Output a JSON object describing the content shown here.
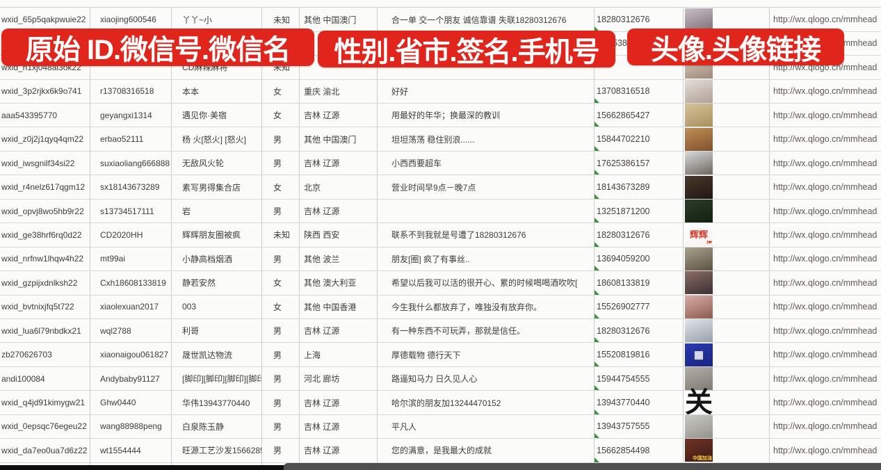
{
  "banners": {
    "left": "原始 ID.微信号.微信名",
    "middle": "性别.省市.签名.手机号",
    "right": "头像.头像链接"
  },
  "colors": {
    "banner_red": "#e0251c",
    "grid_line": "#c9cdd0",
    "cell_text": "#3e3c36",
    "link_text": "#5f5952",
    "error_indicator_green": "#3d9140",
    "scrollbar_track": "#0e0e0e",
    "scrollbar_thumb": "#4f4f4f"
  },
  "icons": {
    "error_indicator": "green-corner-triangle",
    "avatar_placeholder": "photo-thumbnail"
  },
  "rows": [
    {
      "id": "wxid_65p5qakpwuie22",
      "alias": "xiaojing600546",
      "name": "丫丫~小",
      "gender": "未知",
      "region": "其他 中国澳门",
      "signature": "合一单 交一个朋友 诚信靠谱 失联18280312676",
      "phone": "18280312676",
      "link": "http://wx.qlogo.cn/mmhead",
      "mark": "b",
      "avatar": {
        "bg1": "#c7bfc4",
        "bg2": "#7e6f7a"
      }
    },
    {
      "id": "",
      "alias": "",
      "name": "",
      "gender": "",
      "region": "",
      "signature": "",
      "phone": "5386",
      "indent": true,
      "link": "http://wx.qlogo.cn/mmhead",
      "mark": "",
      "avatar": {
        "bg1": "#cccccc",
        "bg2": "#aaaaaa"
      }
    },
    {
      "id": "wxid_h1xj048al3ok22",
      "alias": "",
      "name": "CD麻辣麻将",
      "gender": "未知",
      "region": "",
      "signature": "",
      "phone": "",
      "link": "http://wx.qlogo.cn/mmhead",
      "mark": "t",
      "avatar": {
        "bg1": "#d9c9bf",
        "bg2": "#a08878"
      }
    },
    {
      "id": "wxid_3p2rjkx6k9o741",
      "alias": "r13708316518",
      "name": "本本",
      "gender": "女",
      "region": "重庆 渝北",
      "signature": "好好",
      "phone": "13708316518",
      "link": "http://wx.qlogo.cn/mmhead",
      "mark": "b",
      "avatar": {
        "bg1": "#e3ddd8",
        "bg2": "#b0a198"
      }
    },
    {
      "id": "aaa543395770",
      "alias": "geyangxi1314",
      "name": "遇见你·美宿",
      "gender": "女",
      "region": "吉林 辽源",
      "signature": "用最好的年华；换最深的教训",
      "phone": "15662865427",
      "link": "http://wx.qlogo.cn/mmhead",
      "mark": "b",
      "avatar": {
        "bg1": "#d6c49a",
        "bg2": "#a98e5f"
      }
    },
    {
      "id": "wxid_z0j2j1qyq4qm22",
      "alias": "erbao52111",
      "name": "杨 火[怒火] [怒火]",
      "gender": "男",
      "region": "其他 中国澳门",
      "signature": "坦坦荡荡 稳住别浪......",
      "phone": "15844702210",
      "link": "http://wx.qlogo.cn/mmhead",
      "mark": "b",
      "avatar": {
        "bg1": "#bf8f57",
        "bg2": "#80502c"
      }
    },
    {
      "id": "wxid_iwsgnilf34si22",
      "alias": "suxiaoliang666888",
      "name": "无敌风火轮",
      "gender": "男",
      "region": "吉林 辽源",
      "signature": "小西西要超车",
      "phone": "17625386157",
      "link": "http://wx.qlogo.cn/mmhead",
      "mark": "b",
      "avatar": {
        "bg1": "#d6d9dc",
        "bg2": "#6f675e"
      }
    },
    {
      "id": "wxid_r4nelz617qgm12",
      "alias": "sx18143673289",
      "name": "素写男得集合店",
      "gender": "女",
      "region": "北京",
      "signature": "营业时间早9点－晚7点",
      "phone": "18143673289",
      "link": "http://wx.qlogo.cn/mmhead",
      "mark": "b",
      "avatar": {
        "bg1": "#4a382c",
        "bg2": "#201712"
      }
    },
    {
      "id": "wxid_opvj8wo5hb9r22",
      "alias": "s13734517111",
      "name": "岩",
      "gender": "男",
      "region": "吉林 辽源",
      "signature": "",
      "phone": "13251871200",
      "link": "http://wx.qlogo.cn/mmhead",
      "mark": "b",
      "avatar": {
        "bg1": "#2c3c2c",
        "bg2": "#14200f"
      }
    },
    {
      "id": "wxid_ge38hrf6rq0d22",
      "alias": "CD2020HH",
      "name": "辉辉朋友圈被疯",
      "gender": "未知",
      "region": "陕西 西安",
      "signature": "联系不到我就是号遭了18280312676",
      "phone": "18280312676",
      "link": "http://wx.qlogo.cn/mmhead",
      "mark": "b",
      "avatar": {
        "bg1": "#ffffff",
        "bg2": "#f4f2ef",
        "label": "辉辉",
        "label_color": "#d43a2a",
        "label_size": 13,
        "sub": "I❤",
        "sub_color": "#d43a2a"
      }
    },
    {
      "id": "wxid_nrfnw1lhqw4h22",
      "alias": "mt99ai",
      "name": "小静高档烟酒",
      "gender": "男",
      "region": "其他 波兰",
      "signature": "朋友[圈] 疯了有事丝..",
      "phone": "13694059200",
      "link": "http://wx.qlogo.cn/mmhead",
      "mark": "b",
      "avatar": {
        "bg1": "#a8a28c",
        "bg2": "#5c5243"
      }
    },
    {
      "id": "wxid_gzpijxdnlksh22",
      "alias": "Cxh18608133819",
      "name": "静若安然",
      "gender": "女",
      "region": "其他 澳大利亚",
      "signature": "希望以后我可以活的很开心、累的时候喝喝酒吹吹[",
      "phone": "18608133819",
      "link": "http://wx.qlogo.cn/mmhead",
      "mark": "b",
      "avatar": {
        "bg1": "#8a6e66",
        "bg2": "#3c2f33"
      }
    },
    {
      "id": "wxid_bvtnixjfq5t722",
      "alias": "xiaolexuan2017",
      "name": "003",
      "gender": "女",
      "region": "其他 中国香港",
      "signature": "今生我什么都放弃了，唯独没有放弃你。",
      "phone": "15526902777",
      "link": "http://wx.qlogo.cn/mmhead",
      "mark": "b",
      "avatar": {
        "bg1": "#d8aea6",
        "bg2": "#8c5a52"
      }
    },
    {
      "id": "wxid_lua6l79nbdkx21",
      "alias": "wql2788",
      "name": "利哥",
      "gender": "男",
      "region": "吉林 辽源",
      "signature": "有一种东西不可玩弄，那就是信任。",
      "phone": "18280312676",
      "link": "http://wx.qlogo.cn/mmhead",
      "mark": "b",
      "avatar": {
        "bg1": "#e2e5e9",
        "bg2": "#98a0aa"
      }
    },
    {
      "id": "zb270626703",
      "alias": "xiaonaigou061827",
      "name": "晟世凯达物流",
      "gender": "男",
      "region": "上海",
      "signature": "厚德载物 德行天下",
      "phone": "15520819816",
      "link": "http://wx.qlogo.cn/mmhead",
      "mark": "b",
      "avatar": {
        "bg1": "#2b3ab0",
        "bg2": "#18257e",
        "label": "▦",
        "label_color": "#e8e9f5",
        "label_size": 15
      }
    },
    {
      "id": "andi100084",
      "alias": "Andybaby91127",
      "name": "[脚印][脚印][脚印][脚印]",
      "gender": "男",
      "region": "河北 廊坊",
      "signature": "路遥知马力 日久见人心",
      "phone": "15944754555",
      "link": "http://wx.qlogo.cn/mmhead",
      "mark": "b",
      "avatar": {
        "bg1": "#b3aea6",
        "bg2": "#7f7a72"
      }
    },
    {
      "id": "wxid_q4jd91kimygw21",
      "alias": "Ghw0440",
      "name": "华伟13943770440",
      "gender": "男",
      "region": "吉林 辽源",
      "signature": "哈尔滨的朋友加13244470152",
      "phone": "13943770440",
      "link": "http://wx.qlogo.cn/mmhead",
      "mark": "b",
      "avatar": {
        "bg1": "#ffffff",
        "bg2": "#f6f5f2",
        "label": "关",
        "label_color": "#141414",
        "label_size": 40
      }
    },
    {
      "id": "wxid_0epsqc76egeu22",
      "alias": "wang88988peng",
      "name": "白泉陈玉静",
      "gender": "男",
      "region": "吉林 辽源",
      "signature": "平凡人",
      "phone": "13943757555",
      "link": "http://wx.qlogo.cn/mmhead",
      "mark": "b",
      "avatar": {
        "bg1": "#c9c9c5",
        "bg2": "#94928c"
      }
    },
    {
      "id": "wxid_da7eo0ua7d6z22",
      "alias": "wt1554444",
      "name": "旺源工艺沙发15662854",
      "gender": "男",
      "region": "吉林 辽源",
      "signature": "您的满意，是我最大的成就",
      "phone": "15662854498",
      "link": "http://wx.qlogo.cn/mmhead",
      "mark": "b",
      "avatar": {
        "bg1": "#703428",
        "bg2": "#3f1a12",
        "sub": "中国加油",
        "sub_color": "#ffd24a"
      }
    },
    {
      "id": "",
      "alias": "",
      "name": "",
      "gender": "",
      "region": "",
      "signature": "",
      "phone": "",
      "link": "",
      "mark": "",
      "avatar": {
        "bg1": "#7d88b4",
        "bg2": "#4a5690"
      }
    }
  ]
}
